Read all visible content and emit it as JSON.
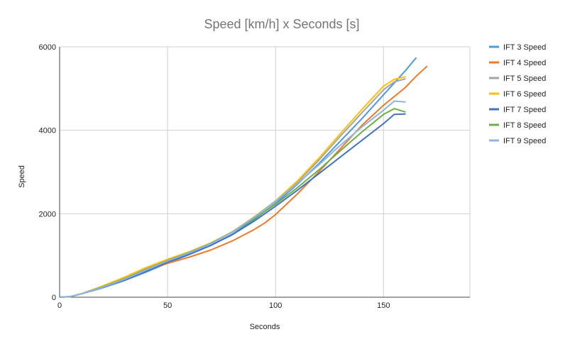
{
  "chart_data": {
    "type": "line",
    "title": "Speed [km/h] x Seconds [s]",
    "xlabel": "Seconds",
    "ylabel": "Speed",
    "xlim": [
      0,
      190
    ],
    "ylim": [
      0,
      6000
    ],
    "x_ticks": [
      0,
      50,
      100,
      150
    ],
    "y_ticks": [
      0,
      2000,
      4000,
      6000
    ],
    "grid": true,
    "legend_position": "right",
    "series": [
      {
        "name": "IFT 3 Speed",
        "color": "#4e9bd6",
        "points": [
          [
            0,
            0
          ],
          [
            5,
            15
          ],
          [
            10,
            80
          ],
          [
            20,
            230
          ],
          [
            30,
            400
          ],
          [
            40,
            600
          ],
          [
            50,
            820
          ],
          [
            60,
            1020
          ],
          [
            70,
            1240
          ],
          [
            80,
            1510
          ],
          [
            90,
            1860
          ],
          [
            100,
            2250
          ],
          [
            110,
            2700
          ],
          [
            120,
            3200
          ],
          [
            130,
            3740
          ],
          [
            140,
            4280
          ],
          [
            150,
            4850
          ],
          [
            160,
            5420
          ],
          [
            165,
            5730
          ]
        ]
      },
      {
        "name": "IFT 4 Speed",
        "color": "#ef7a2a",
        "points": [
          [
            0,
            0
          ],
          [
            5,
            15
          ],
          [
            10,
            80
          ],
          [
            20,
            250
          ],
          [
            30,
            440
          ],
          [
            40,
            640
          ],
          [
            50,
            810
          ],
          [
            60,
            960
          ],
          [
            70,
            1130
          ],
          [
            80,
            1350
          ],
          [
            90,
            1620
          ],
          [
            95,
            1780
          ],
          [
            100,
            1980
          ],
          [
            110,
            2470
          ],
          [
            120,
            3000
          ],
          [
            130,
            3560
          ],
          [
            140,
            4120
          ],
          [
            150,
            4600
          ],
          [
            160,
            5020
          ],
          [
            165,
            5290
          ],
          [
            170,
            5530
          ]
        ]
      },
      {
        "name": "IFT 5 Speed",
        "color": "#a5a5a5",
        "points": [
          [
            0,
            0
          ],
          [
            5,
            15
          ],
          [
            10,
            80
          ],
          [
            20,
            260
          ],
          [
            30,
            460
          ],
          [
            40,
            680
          ],
          [
            50,
            900
          ],
          [
            60,
            1080
          ],
          [
            70,
            1290
          ],
          [
            80,
            1560
          ],
          [
            90,
            1920
          ],
          [
            100,
            2300
          ],
          [
            110,
            2750
          ],
          [
            120,
            3280
          ],
          [
            130,
            3860
          ],
          [
            140,
            4420
          ],
          [
            150,
            4970
          ],
          [
            155,
            5160
          ],
          [
            160,
            5230
          ]
        ]
      },
      {
        "name": "IFT 6 Speed",
        "color": "#ffc000",
        "points": [
          [
            0,
            0
          ],
          [
            5,
            15
          ],
          [
            10,
            80
          ],
          [
            20,
            270
          ],
          [
            30,
            480
          ],
          [
            40,
            710
          ],
          [
            50,
            910
          ],
          [
            60,
            1090
          ],
          [
            70,
            1300
          ],
          [
            80,
            1570
          ],
          [
            90,
            1920
          ],
          [
            100,
            2310
          ],
          [
            110,
            2780
          ],
          [
            120,
            3330
          ],
          [
            130,
            3920
          ],
          [
            140,
            4500
          ],
          [
            150,
            5060
          ],
          [
            155,
            5220
          ],
          [
            160,
            5280
          ]
        ]
      },
      {
        "name": "IFT 7 Speed",
        "color": "#4472c4",
        "points": [
          [
            0,
            0
          ],
          [
            5,
            15
          ],
          [
            10,
            80
          ],
          [
            20,
            230
          ],
          [
            30,
            410
          ],
          [
            40,
            620
          ],
          [
            50,
            840
          ],
          [
            60,
            1030
          ],
          [
            70,
            1240
          ],
          [
            80,
            1500
          ],
          [
            90,
            1820
          ],
          [
            100,
            2180
          ],
          [
            110,
            2560
          ],
          [
            120,
            2960
          ],
          [
            130,
            3360
          ],
          [
            140,
            3760
          ],
          [
            150,
            4160
          ],
          [
            155,
            4380
          ],
          [
            160,
            4390
          ]
        ]
      },
      {
        "name": "IFT 8 Speed",
        "color": "#70ad47",
        "points": [
          [
            0,
            0
          ],
          [
            5,
            15
          ],
          [
            10,
            80
          ],
          [
            20,
            250
          ],
          [
            30,
            440
          ],
          [
            40,
            660
          ],
          [
            50,
            880
          ],
          [
            60,
            1070
          ],
          [
            70,
            1290
          ],
          [
            80,
            1560
          ],
          [
            90,
            1880
          ],
          [
            100,
            2230
          ],
          [
            110,
            2620
          ],
          [
            120,
            3050
          ],
          [
            130,
            3510
          ],
          [
            140,
            3960
          ],
          [
            150,
            4380
          ],
          [
            155,
            4520
          ],
          [
            160,
            4440
          ]
        ]
      },
      {
        "name": "IFT 9 Speed",
        "color": "#8db4e2",
        "points": [
          [
            0,
            0
          ],
          [
            5,
            15
          ],
          [
            10,
            80
          ],
          [
            20,
            240
          ],
          [
            30,
            430
          ],
          [
            40,
            650
          ],
          [
            50,
            870
          ],
          [
            60,
            1060
          ],
          [
            70,
            1280
          ],
          [
            80,
            1560
          ],
          [
            90,
            1910
          ],
          [
            100,
            2300
          ],
          [
            110,
            2720
          ],
          [
            120,
            3170
          ],
          [
            130,
            3640
          ],
          [
            140,
            4080
          ],
          [
            150,
            4480
          ],
          [
            155,
            4700
          ],
          [
            160,
            4680
          ]
        ]
      }
    ]
  }
}
